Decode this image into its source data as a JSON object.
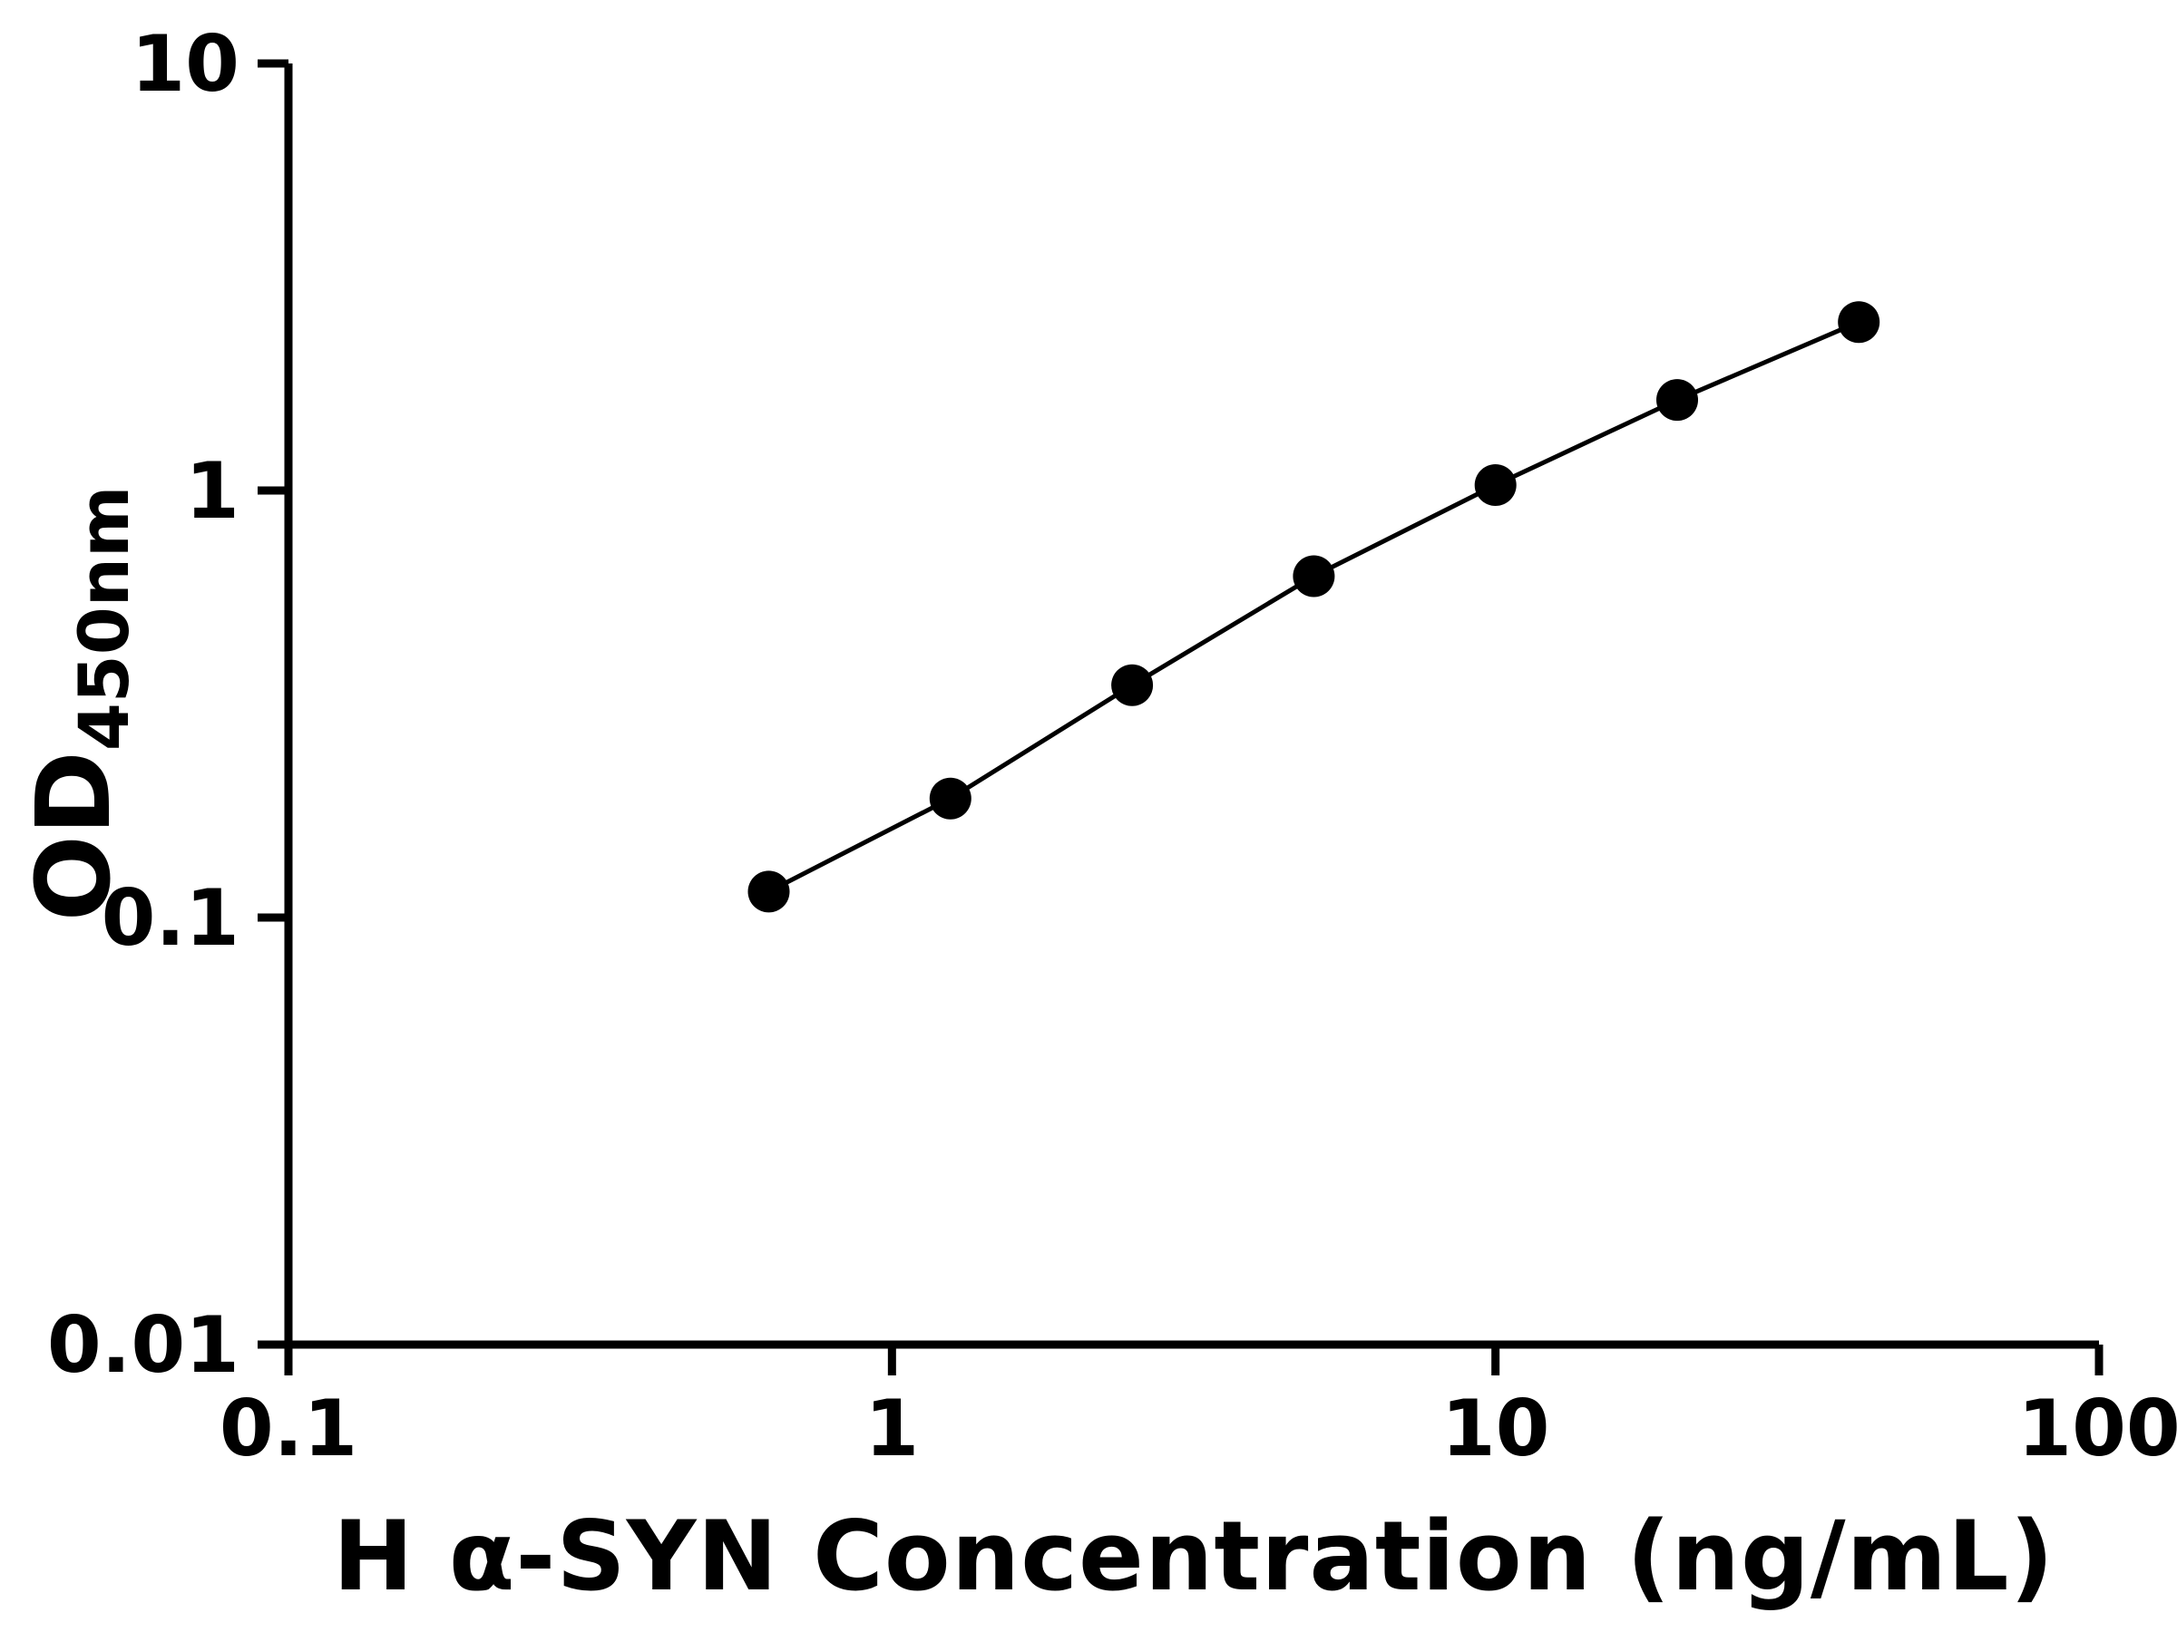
{
  "chart_data": {
    "type": "scatter",
    "subtype": "line-connected-standard-curve",
    "title": "",
    "xlabel": "H α-SYN Concentration (ng/mL)",
    "ylabel_main": "OD",
    "ylabel_sub": "450nm",
    "x_scale": "log",
    "y_scale": "log",
    "xlim": [
      0.1,
      100
    ],
    "ylim": [
      0.01,
      10
    ],
    "x_ticks": [
      0.1,
      1,
      10,
      100
    ],
    "x_tick_labels": [
      "0.1",
      "1",
      "10",
      "100"
    ],
    "y_ticks": [
      0.01,
      0.1,
      1,
      10
    ],
    "y_tick_labels": [
      "0.01",
      "0.1",
      "1",
      "10"
    ],
    "x": [
      0.625,
      1.25,
      2.5,
      5,
      10,
      20,
      40
    ],
    "y": [
      0.115,
      0.19,
      0.35,
      0.63,
      1.03,
      1.63,
      2.48
    ],
    "grid": false,
    "legend": "none",
    "marker": "circle-filled",
    "marker_color": "#000000",
    "line_color": "#000000",
    "axis_color": "#000000",
    "background": "#ffffff"
  }
}
